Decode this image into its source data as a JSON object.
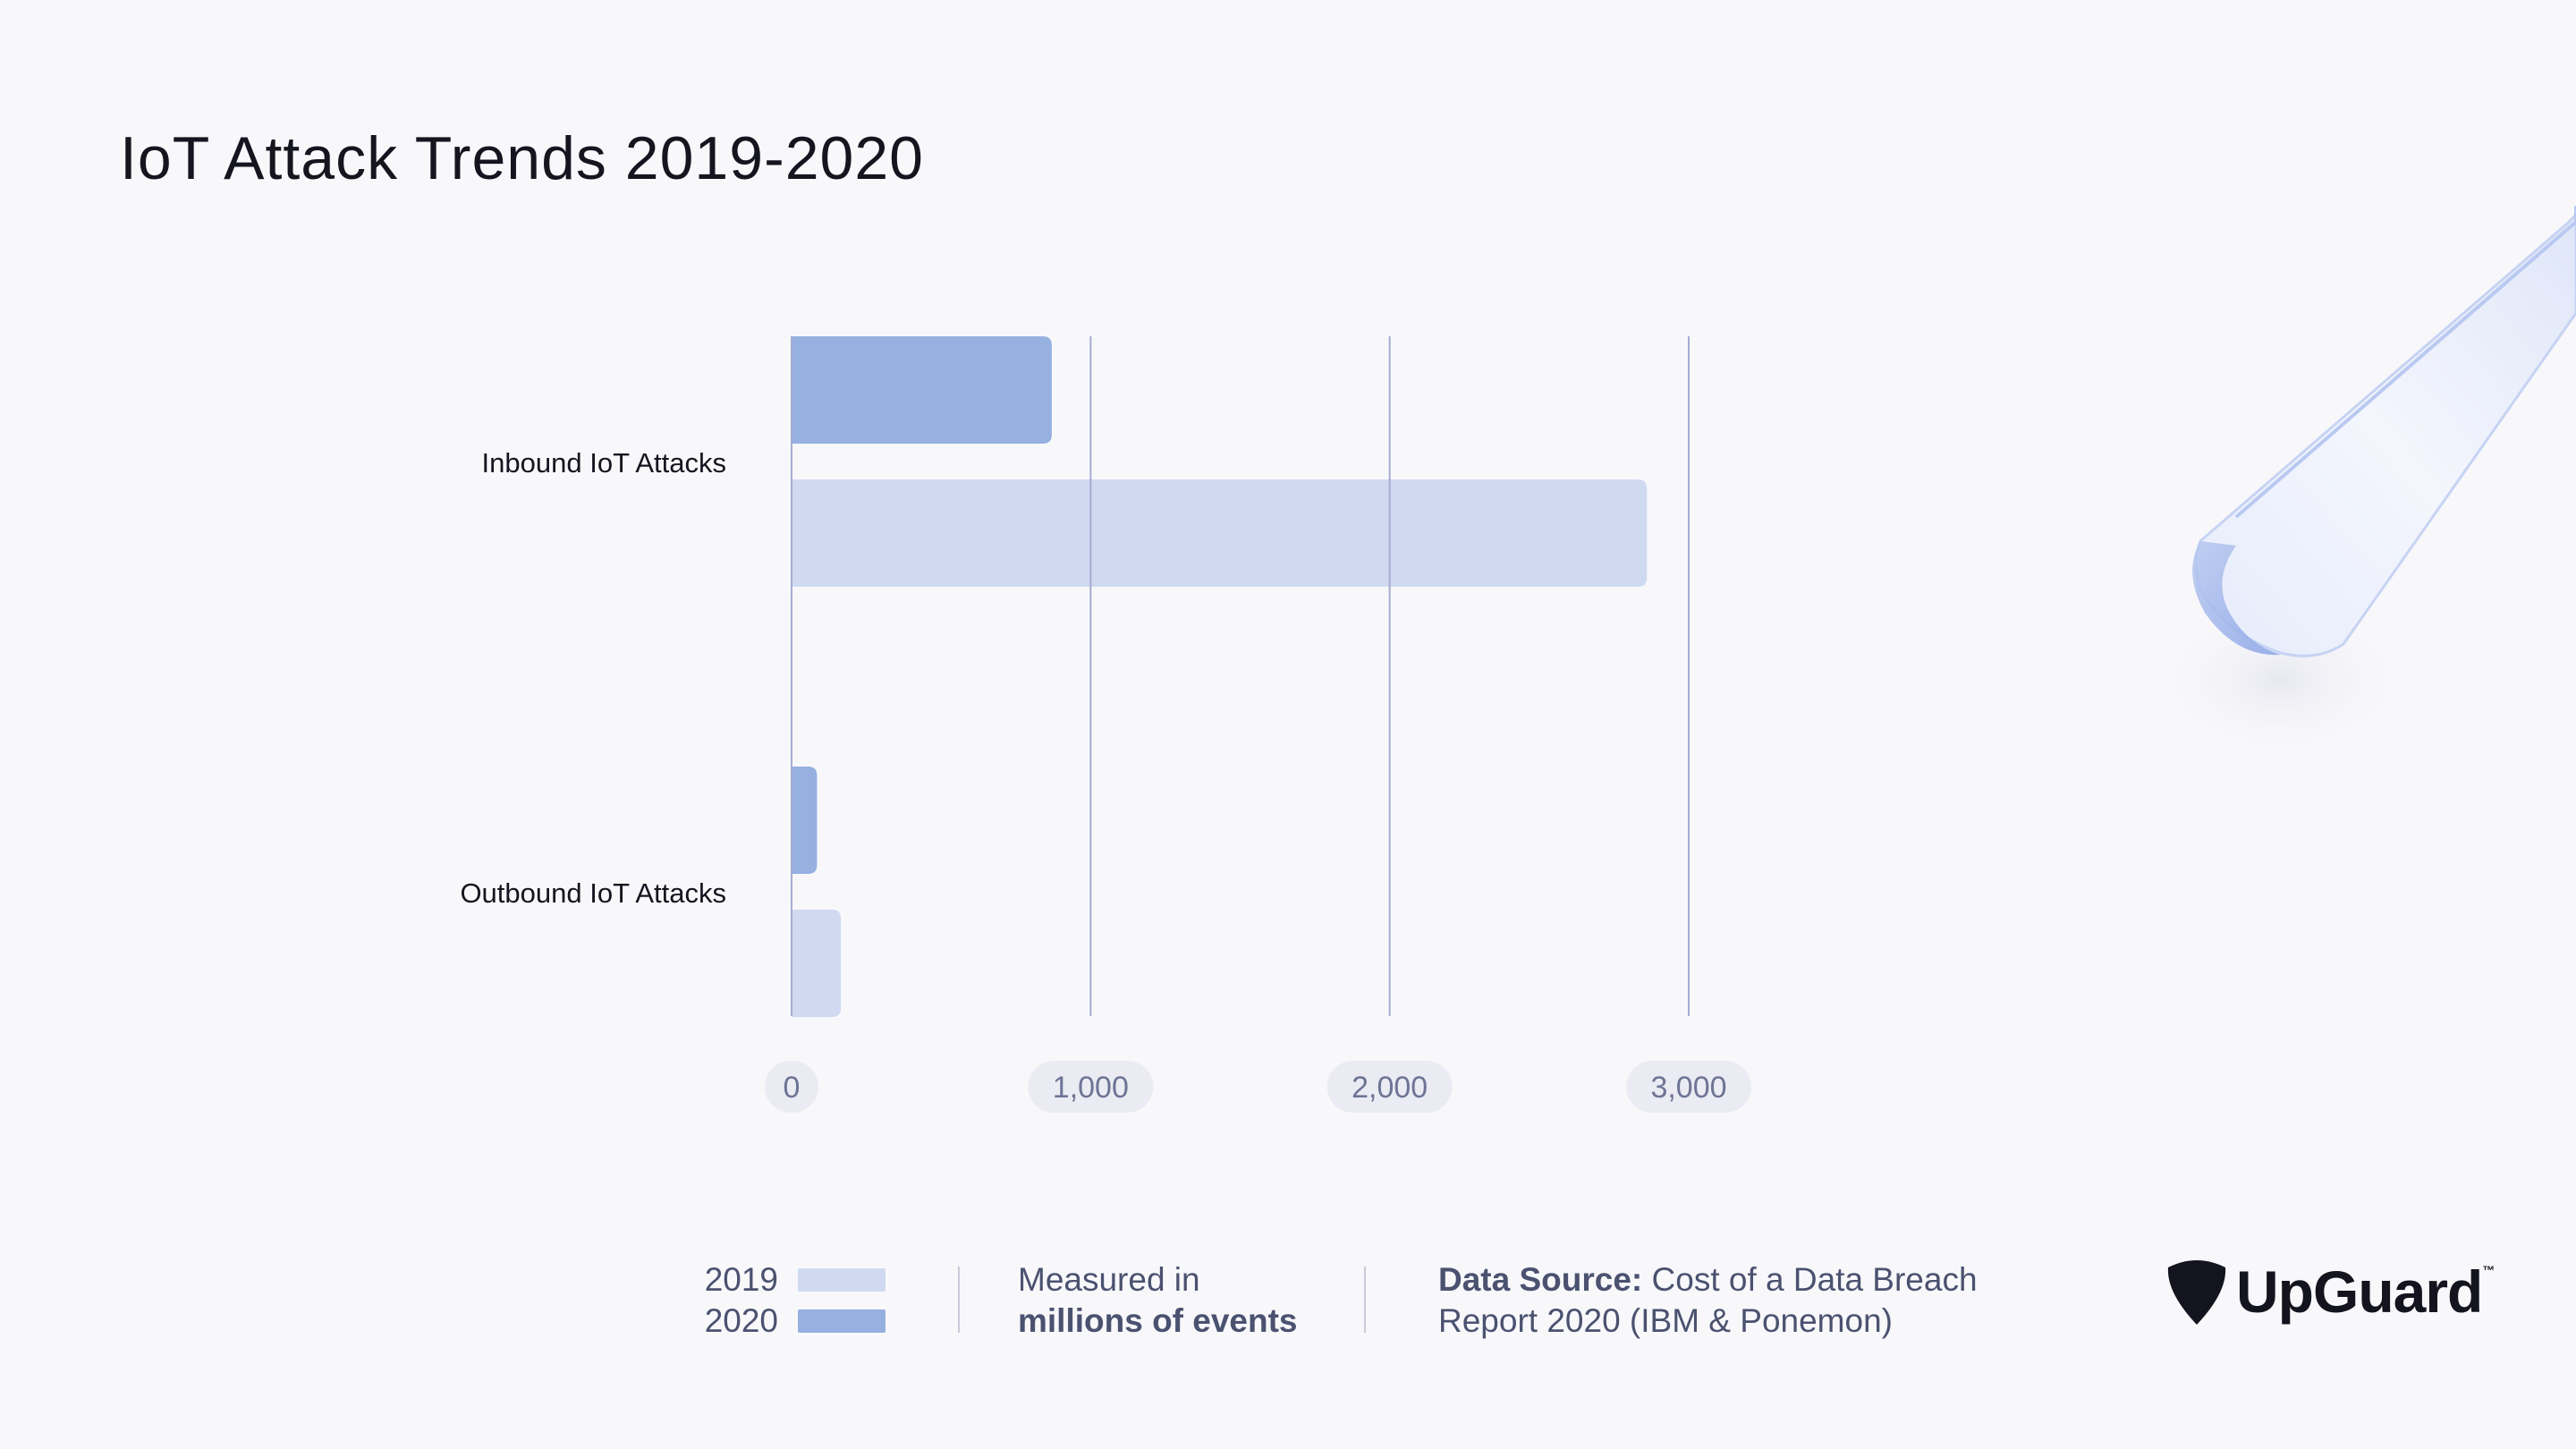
{
  "title": "IoT Attack Trends 2019-2020",
  "chart_data": {
    "type": "bar",
    "orientation": "horizontal",
    "title": "IoT Attack Trends 2019-2020",
    "categories": [
      "Inbound IoT Attacks",
      "Outbound IoT Attacks"
    ],
    "series": [
      {
        "name": "2020",
        "color": "#96b0e0",
        "values": [
          870,
          85
        ]
      },
      {
        "name": "2019",
        "color": "#cfdaf1",
        "values": [
          2860,
          165
        ]
      }
    ],
    "xlim": [
      0,
      3000
    ],
    "xticks": [
      0,
      1000,
      2000,
      3000
    ],
    "xtick_labels": [
      "0",
      "1,000",
      "2,000",
      "3,000"
    ],
    "grid": true,
    "xlabel": "",
    "ylabel": ""
  },
  "legend": {
    "items": [
      {
        "label": "2019",
        "color": "#cfdaf1"
      },
      {
        "label": "2020",
        "color": "#96b0e0"
      }
    ]
  },
  "measured": {
    "line1": "Measured in",
    "line2": "millions of events"
  },
  "source": {
    "label": "Data Source:",
    "line1": "Cost of a Data Breach",
    "line2": "Report 2020 (IBM & Ponemon)"
  },
  "logo": {
    "text": "UpGuard",
    "tm": "™"
  },
  "colors": {
    "gridline": "#a7abcf",
    "tick_pill": "#ebebf3",
    "tick_text": "#6e7495",
    "axis": "#a7abcf"
  }
}
